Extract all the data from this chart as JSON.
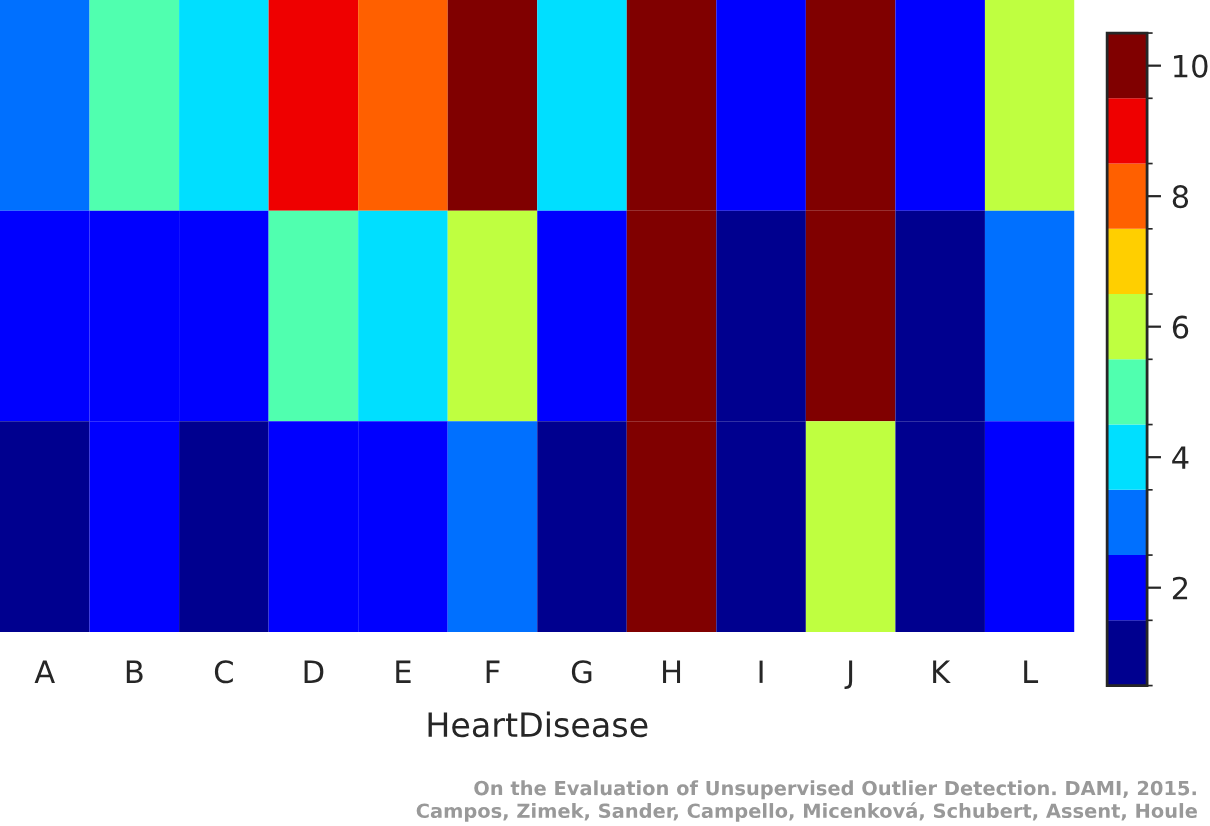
{
  "chart_data": {
    "type": "heatmap",
    "xlabel": "HeartDisease",
    "categories": [
      "A",
      "B",
      "C",
      "D",
      "E",
      "F",
      "G",
      "H",
      "I",
      "J",
      "K",
      "L"
    ],
    "y_categories": [
      null,
      null,
      null
    ],
    "cells": [
      [
        3,
        5,
        4,
        9,
        8,
        10,
        4,
        10,
        2,
        10,
        2,
        6
      ],
      [
        2,
        2,
        2,
        5,
        4,
        6,
        2,
        10,
        1,
        10,
        1,
        3
      ],
      [
        1,
        2,
        1,
        2,
        2,
        3,
        1,
        10,
        1,
        6,
        1,
        2
      ]
    ],
    "colors": [
      "#00008f",
      "#0000ff",
      "#0070ff",
      "#00dfff",
      "#50ffaf",
      "#bfff40",
      "#ffcf00",
      "#ff6000",
      "#ef0000",
      "#800000"
    ],
    "clim": [
      0.5,
      10.5
    ],
    "cticks": [
      2,
      4,
      6,
      8,
      10
    ],
    "annotations": [
      "On the Evaluation of Unsupervised Outlier Detection. DAMI, 2015.\nCampos, Zimek, Sander, Campello, Micenková, Schubert, Assent, Houle"
    ]
  }
}
